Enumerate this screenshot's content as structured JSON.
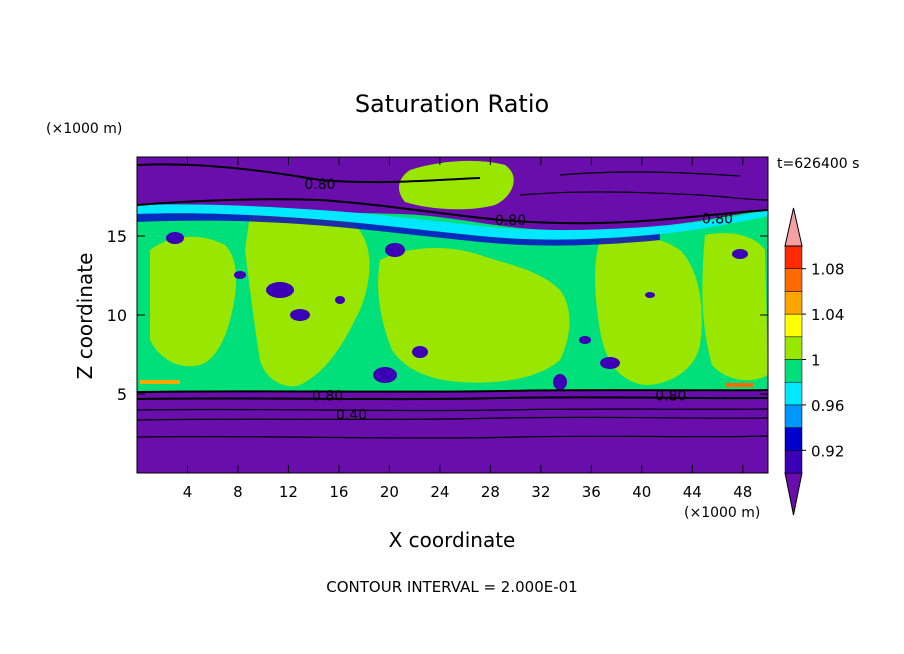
{
  "chart_data": {
    "type": "heatmap",
    "title": "Saturation Ratio",
    "xlabel": "X coordinate",
    "ylabel": "Z coordinate",
    "x_unit": "(×1000 m)",
    "y_unit": "(×1000 m)",
    "time_label": "t=626400 s",
    "footer": "CONTOUR INTERVAL = 2.000E-01",
    "xlim": [
      0,
      50
    ],
    "ylim": [
      0,
      20
    ],
    "x_ticks": [
      4,
      8,
      12,
      16,
      20,
      24,
      28,
      32,
      36,
      40,
      44,
      48
    ],
    "y_ticks": [
      5,
      10,
      15
    ],
    "contour_labels": [
      {
        "text": "0.80",
        "x": 14.5,
        "y": 18.3
      },
      {
        "text": "0.80",
        "x": 29.6,
        "y": 16.0
      },
      {
        "text": "0.80",
        "x": 46.0,
        "y": 16.1
      },
      {
        "text": "0.80",
        "x": 15.1,
        "y": 4.9
      },
      {
        "text": "0.80",
        "x": 42.3,
        "y": 4.9
      },
      {
        "text": "0.40",
        "x": 17.0,
        "y": 3.7
      }
    ],
    "colorbar": {
      "levels": [
        0.9,
        0.92,
        0.94,
        0.96,
        0.98,
        1.0,
        1.02,
        1.04,
        1.06,
        1.08,
        1.1
      ],
      "tick_labels": [
        "0.92",
        "0.96",
        "1",
        "1.04",
        "1.08"
      ],
      "colors": [
        "#6a0dad",
        "#3b00b5",
        "#0000cd",
        "#0096ff",
        "#00e8ff",
        "#00e07a",
        "#99e600",
        "#ffff00",
        "#ffa500",
        "#ff6a00",
        "#ff2a00",
        "#f4a0a0"
      ]
    }
  }
}
